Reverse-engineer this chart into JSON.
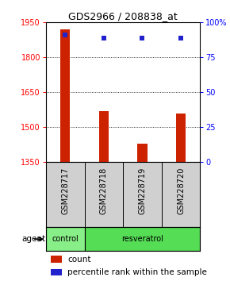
{
  "title": "GDS2966 / 208838_at",
  "samples": [
    "GSM228717",
    "GSM228718",
    "GSM228719",
    "GSM228720"
  ],
  "bar_values": [
    1920,
    1570,
    1430,
    1560
  ],
  "percentile_values": [
    91,
    89,
    89,
    89
  ],
  "bar_color": "#cc2200",
  "percentile_color": "#2222cc",
  "ylim_left": [
    1350,
    1950
  ],
  "ylim_right": [
    0,
    100
  ],
  "yticks_left": [
    1350,
    1500,
    1650,
    1800,
    1950
  ],
  "yticks_right": [
    0,
    25,
    50,
    75,
    100
  ],
  "ytick_labels_right": [
    "0",
    "25",
    "50",
    "75",
    "100%"
  ],
  "group_control_color": "#88ee88",
  "group_resveratrol_color": "#55dd55",
  "label_area_color": "#d0d0d0",
  "bg_color": "#ffffff"
}
